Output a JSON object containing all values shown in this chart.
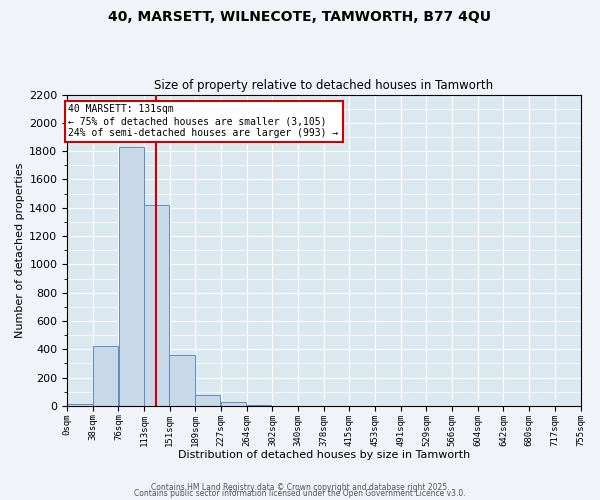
{
  "title1": "40, MARSETT, WILNECOTE, TAMWORTH, B77 4QU",
  "title2": "Size of property relative to detached houses in Tamworth",
  "xlabel": "Distribution of detached houses by size in Tamworth",
  "ylabel": "Number of detached properties",
  "bar_edges": [
    0,
    38,
    76,
    113,
    151,
    189,
    227,
    264,
    302,
    340,
    378,
    415,
    453,
    491,
    529,
    566,
    604,
    642,
    680,
    717,
    755
  ],
  "bar_values": [
    15,
    420,
    1830,
    1420,
    360,
    75,
    25,
    10,
    0,
    0,
    0,
    0,
    0,
    0,
    0,
    0,
    0,
    0,
    0,
    0
  ],
  "bar_color": "#c8d8e8",
  "bar_edgecolor": "#5a8fc0",
  "property_size": 131,
  "red_line_color": "#cc0000",
  "annotation_line1": "40 MARSETT: 131sqm",
  "annotation_line2": "← 75% of detached houses are smaller (3,105)",
  "annotation_line3": "24% of semi-detached houses are larger (993) →",
  "annotation_box_edgecolor": "#cc0000",
  "annotation_box_facecolor": "#ffffff",
  "ylim": [
    0,
    2200
  ],
  "xlim": [
    0,
    755
  ],
  "yticks": [
    0,
    200,
    400,
    600,
    800,
    1000,
    1200,
    1400,
    1600,
    1800,
    2000,
    2200
  ],
  "tick_labels": [
    "0sqm",
    "38sqm",
    "76sqm",
    "113sqm",
    "151sqm",
    "189sqm",
    "227sqm",
    "264sqm",
    "302sqm",
    "340sqm",
    "378sqm",
    "415sqm",
    "453sqm",
    "491sqm",
    "529sqm",
    "566sqm",
    "604sqm",
    "642sqm",
    "680sqm",
    "717sqm",
    "755sqm"
  ],
  "fig_facecolor": "#f0f4f8",
  "ax_facecolor": "#dce8f0",
  "grid_color": "#ffffff",
  "footer1": "Contains HM Land Registry data © Crown copyright and database right 2025.",
  "footer2": "Contains public sector information licensed under the Open Government Licence v3.0."
}
